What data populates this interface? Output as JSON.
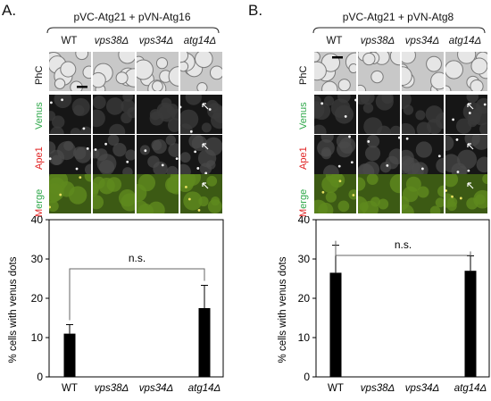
{
  "panels": [
    {
      "letter": "A.",
      "construct": "pVC-Atg21 + pVN-Atg16",
      "columns": [
        "WT",
        "vps38Δ",
        "vps34Δ",
        "atg14Δ"
      ],
      "rows": [
        "PhC",
        "Venus",
        "Ape1",
        "Merge"
      ],
      "chart_data": {
        "type": "bar",
        "categories": [
          "WT",
          "vps38Δ",
          "vps34Δ",
          "atg14Δ"
        ],
        "values": [
          11,
          0,
          0,
          17.5
        ],
        "errors": [
          2.3,
          0,
          0,
          5.8
        ],
        "ylabel": "% cells with venus dots",
        "ylim": [
          0,
          40
        ],
        "yticks": [
          0,
          10,
          20,
          30,
          40
        ],
        "annotation": "n.s.",
        "comparison": [
          "WT",
          "atg14Δ"
        ],
        "bar_color": "#000000"
      }
    },
    {
      "letter": "B.",
      "construct": "pVC-Atg21 + pVN-Atg8",
      "columns": [
        "WT",
        "vps38Δ",
        "vps34Δ",
        "atg14Δ"
      ],
      "rows": [
        "PhC",
        "Venus",
        "Ape1",
        "Merge"
      ],
      "chart_data": {
        "type": "bar",
        "categories": [
          "WT",
          "vps38Δ",
          "vps34Δ",
          "atg14Δ"
        ],
        "values": [
          26.5,
          0,
          0,
          27
        ],
        "errors": [
          7,
          0,
          0,
          3.8
        ],
        "ylabel": "% cells with venus dots",
        "ylim": [
          0,
          40
        ],
        "yticks": [
          0,
          10,
          20,
          30,
          40
        ],
        "annotation": "n.s.",
        "comparison": [
          "WT",
          "atg14Δ"
        ],
        "bar_color": "#000000"
      }
    }
  ],
  "colors": {
    "venus_label": "#2fa84a",
    "ape1_label": "#e02020",
    "merge_m": "#e02020",
    "merge_rest": "#2fa84a",
    "phc_bg": "#c8c8c8",
    "fluor_bg": "#161616",
    "merge_bg": "#3c5a14"
  }
}
